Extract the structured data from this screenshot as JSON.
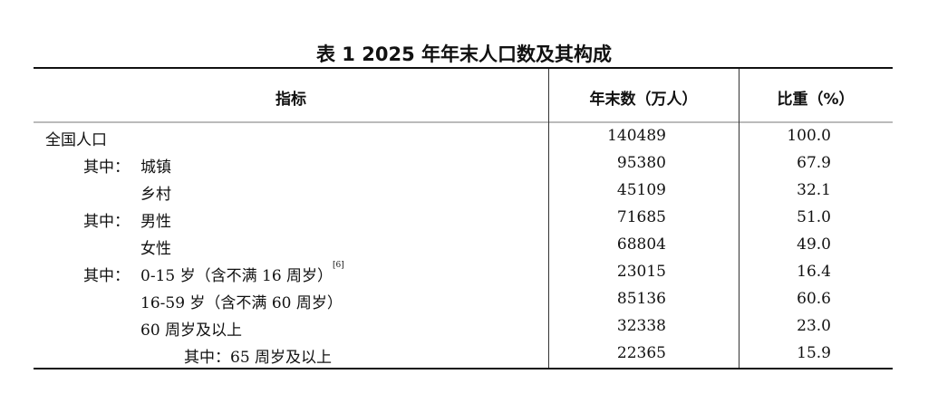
{
  "title": "表 1   2025 年年末人口数及其构成",
  "headers": {
    "indicator": "指标",
    "count": "年末数（万人）",
    "share": "比重（%）"
  },
  "rows": [
    {
      "prefix": "全国人口",
      "label": "",
      "footnote": "",
      "count": "140489",
      "share": "100.0"
    },
    {
      "prefix": "其中：",
      "label": "城镇",
      "footnote": "",
      "count": "95380",
      "share": "67.9"
    },
    {
      "prefix": "",
      "label": "乡村",
      "footnote": "",
      "count": "45109",
      "share": "32.1"
    },
    {
      "prefix": "其中：",
      "label": "男性",
      "footnote": "",
      "count": "71685",
      "share": "51.0"
    },
    {
      "prefix": "",
      "label": "女性",
      "footnote": "",
      "count": "68804",
      "share": "49.0"
    },
    {
      "prefix": "其中：",
      "label": "0-15 岁（含不满 16 周岁）",
      "footnote": "[6]",
      "count": "23015",
      "share": "16.4"
    },
    {
      "prefix": "",
      "label": "16-59 岁（含不满 60 周岁）",
      "footnote": "",
      "count": "85136",
      "share": "60.6"
    },
    {
      "prefix": "",
      "label": "60 周岁及以上",
      "footnote": "",
      "count": "32338",
      "share": "23.0"
    },
    {
      "prefix": "",
      "label": "其中：65 周岁及以上",
      "footnote": "",
      "count": "22365",
      "share": "15.9"
    }
  ]
}
